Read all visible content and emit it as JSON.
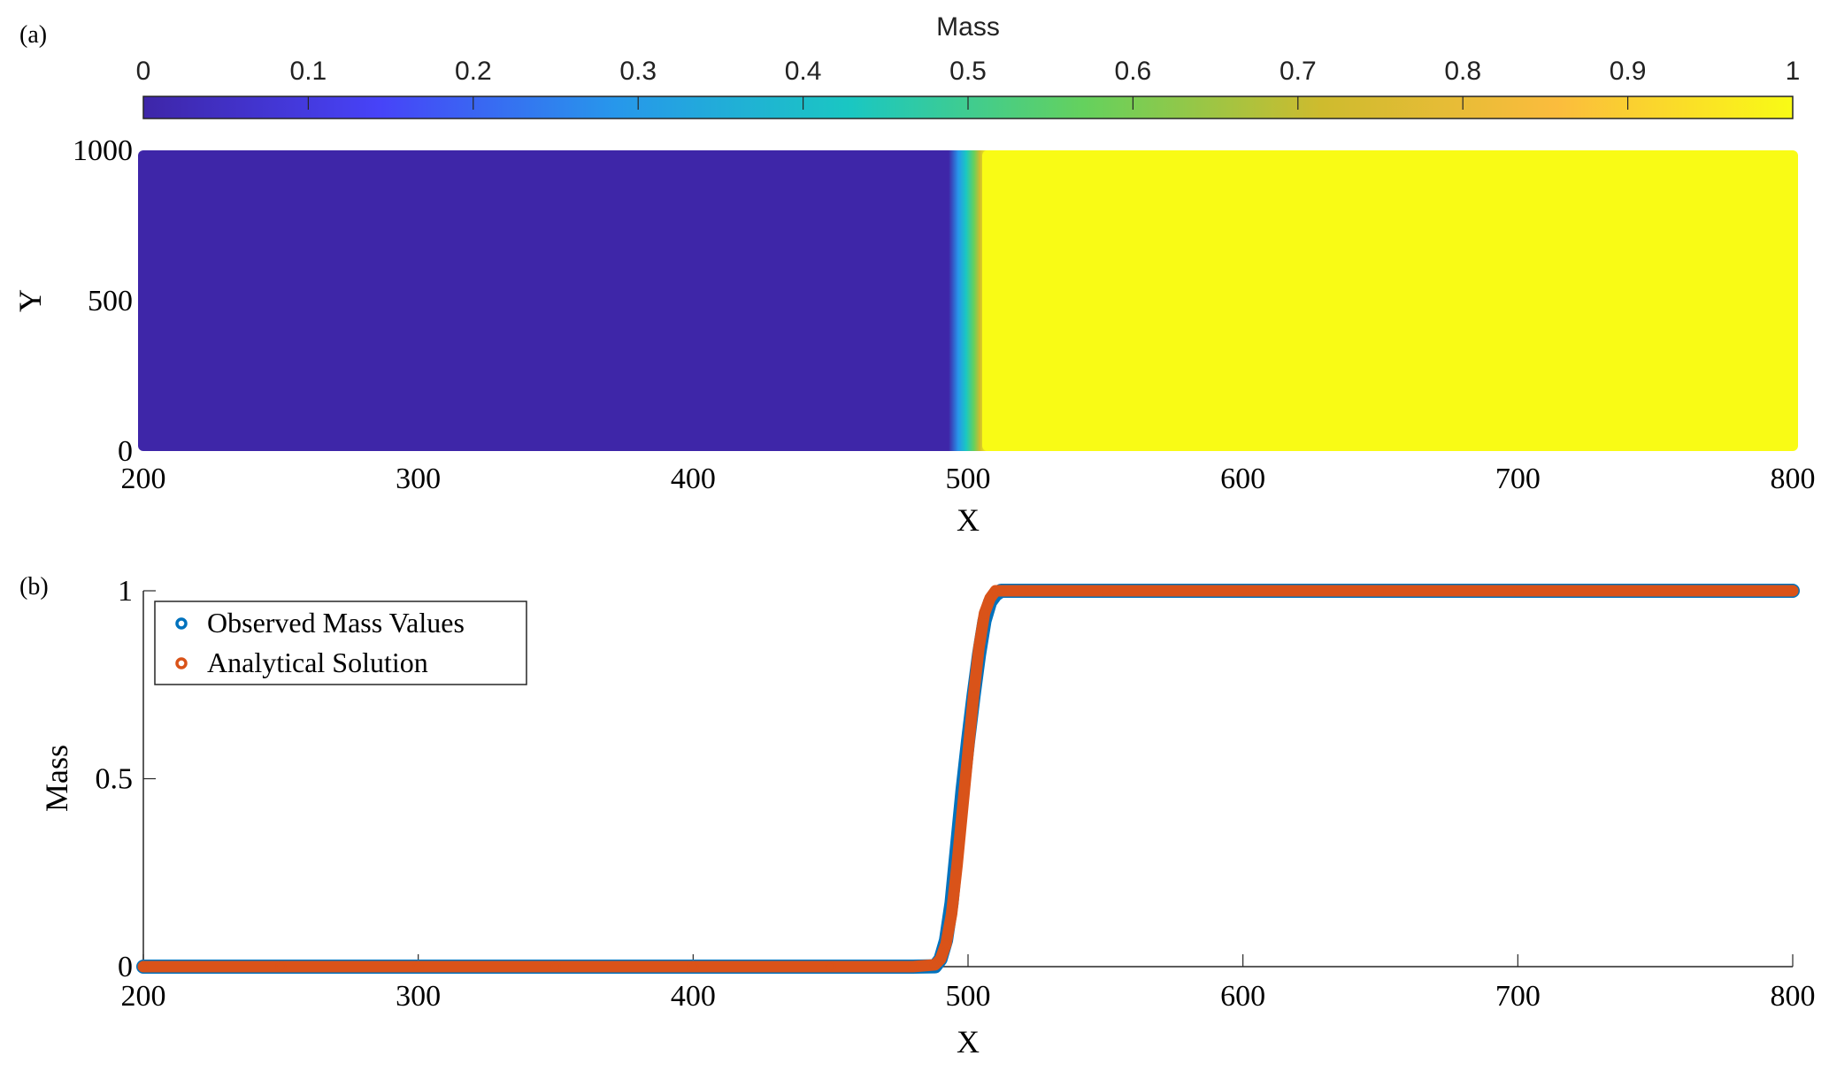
{
  "panels": {
    "a": {
      "label": "(a)",
      "chart_data": {
        "type": "heatmap",
        "xlabel": "X",
        "ylabel": "Y",
        "xlim": [
          200,
          800
        ],
        "ylim": [
          0,
          1000
        ],
        "xticks": [
          200,
          300,
          400,
          500,
          600,
          700,
          800
        ],
        "yticks": [
          0,
          500,
          1000
        ],
        "front_x": 500,
        "value_left": 0,
        "value_right": 1,
        "colorbar": {
          "label": "Mass",
          "ticks": [
            0,
            0.1,
            0.2,
            0.3,
            0.4,
            0.5,
            0.6,
            0.7,
            0.8,
            0.9,
            1
          ],
          "tick_labels": [
            "0",
            "0.1",
            "0.2",
            "0.3",
            "0.4",
            "0.5",
            "0.6",
            "0.7",
            "0.8",
            "0.9",
            "1"
          ],
          "colormap": "parula",
          "colors": [
            "#3e26a8",
            "#4743f8",
            "#2797eb",
            "#1ac7c2",
            "#65d15d",
            "#cebb2e",
            "#fbbc3d",
            "#f9fb15"
          ]
        }
      }
    },
    "b": {
      "label": "(b)",
      "chart_data": {
        "type": "scatter",
        "xlabel": "X",
        "ylabel": "Mass",
        "xlim": [
          200,
          800
        ],
        "ylim": [
          0,
          1
        ],
        "xticks": [
          200,
          300,
          400,
          500,
          600,
          700,
          800
        ],
        "yticks": [
          0,
          0.5,
          1
        ],
        "ytick_labels": [
          "0",
          "0.5",
          "1"
        ],
        "legend_position": "top-left",
        "series": [
          {
            "name": "Observed Mass Values",
            "color": "#0072bd",
            "x": [
              200,
              250,
              300,
              350,
              400,
              450,
              480,
              488,
              490,
              492,
              494,
              496,
              498,
              500,
              502,
              504,
              506,
              508,
              510,
              512,
              520,
              550,
              600,
              650,
              700,
              750,
              800
            ],
            "y": [
              0,
              0,
              0,
              0,
              0,
              0,
              0,
              0.001,
              0.02,
              0.07,
              0.17,
              0.32,
              0.47,
              0.6,
              0.72,
              0.83,
              0.92,
              0.97,
              0.99,
              1.0,
              1,
              1,
              1,
              1,
              1,
              1,
              1
            ]
          },
          {
            "name": "Analytical Solution",
            "color": "#d95319",
            "x": [
              200,
              250,
              300,
              350,
              400,
              450,
              480,
              488,
              490,
              492,
              494,
              496,
              498,
              500,
              502,
              504,
              506,
              508,
              510,
              512,
              520,
              550,
              600,
              650,
              700,
              750,
              800
            ],
            "y": [
              0,
              0,
              0,
              0,
              0,
              0,
              0,
              0.005,
              0.02,
              0.06,
              0.14,
              0.27,
              0.42,
              0.57,
              0.72,
              0.85,
              0.94,
              0.98,
              1.0,
              1.0,
              1,
              1,
              1,
              1,
              1,
              1,
              1
            ]
          }
        ]
      }
    }
  }
}
